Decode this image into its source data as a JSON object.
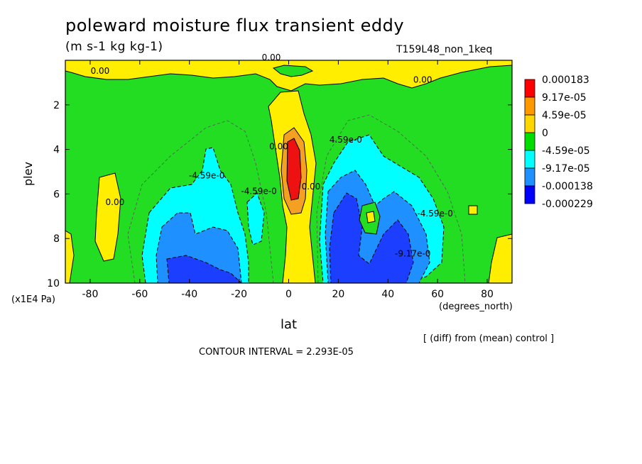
{
  "chart_data": {
    "type": "heatmap",
    "title": "poleward moisture flux transient eddy",
    "units": "(m s-1 kg kg-1)",
    "run_label": "T159L48_non_1keq",
    "xlabel": "lat",
    "x_unit": "(degrees_north)",
    "ylabel": "plev",
    "y_unit": "(x1E4 Pa)",
    "diff_note": "[ (diff) from (mean) control ]",
    "contour_interval": "CONTOUR INTERVAL = 2.293E-05",
    "xlim": [
      -90,
      90
    ],
    "ylim": [
      0,
      10
    ],
    "y_inverted": true,
    "x_ticks": [
      -80,
      -60,
      -40,
      -20,
      0,
      20,
      40,
      60,
      80
    ],
    "y_ticks": [
      2,
      4,
      6,
      8,
      10
    ],
    "colorbar": {
      "labels": [
        "0.000183",
        "9.17e-05",
        "4.59e-05",
        "0",
        "-4.59e-05",
        "-9.17e-05",
        "-0.000138",
        "-0.000229"
      ],
      "colors": [
        "#ff0000",
        "#ff9900",
        "#ffd700",
        "#00dd00",
        "#00ffff",
        "#1e90ff",
        "#0000ff"
      ],
      "level_colors": {
        "red": "#ee1111",
        "orange": "#f4a023",
        "yellow": "#ffee00",
        "green": "#22dd22",
        "cyan": "#00ffff",
        "lightblue": "#1e90ff",
        "blue": "#1c3fff"
      }
    },
    "contour_labels": [
      {
        "text": "0.00",
        "lat": -76,
        "plev": 0.6
      },
      {
        "text": "0.00",
        "lat": -7,
        "plev": 0.0
      },
      {
        "text": "0.00",
        "lat": 54,
        "plev": 1.0
      },
      {
        "text": "0.00",
        "lat": -70,
        "plev": 6.5
      },
      {
        "text": "0.00",
        "lat": -4,
        "plev": 4.0
      },
      {
        "text": "0.00",
        "lat": 9,
        "plev": 5.8
      },
      {
        "text": "-4.59e-0",
        "lat": -33,
        "plev": 5.3
      },
      {
        "text": "-4.59e-0",
        "lat": -12,
        "plev": 6.0
      },
      {
        "text": "4.59e-0",
        "lat": 23,
        "plev": 3.7
      },
      {
        "text": "-4.59e-0",
        "lat": 59,
        "plev": 7.0
      },
      {
        "text": "-9.17e-0",
        "lat": 50,
        "plev": 8.8
      }
    ],
    "regions_description": [
      {
        "level": "positive max (0.000183)",
        "lat_range": [
          0,
          6
        ],
        "plev_range": [
          3.5,
          6.5
        ]
      },
      {
        "level": "negative min (-0.000229)",
        "lat_range": [
          -50,
          -20
        ],
        "plev_range": [
          8.5,
          10
        ]
      },
      {
        "level": "negative min (-0.000229)",
        "lat_range": [
          20,
          50
        ],
        "plev_range": [
          6,
          10
        ]
      }
    ]
  }
}
